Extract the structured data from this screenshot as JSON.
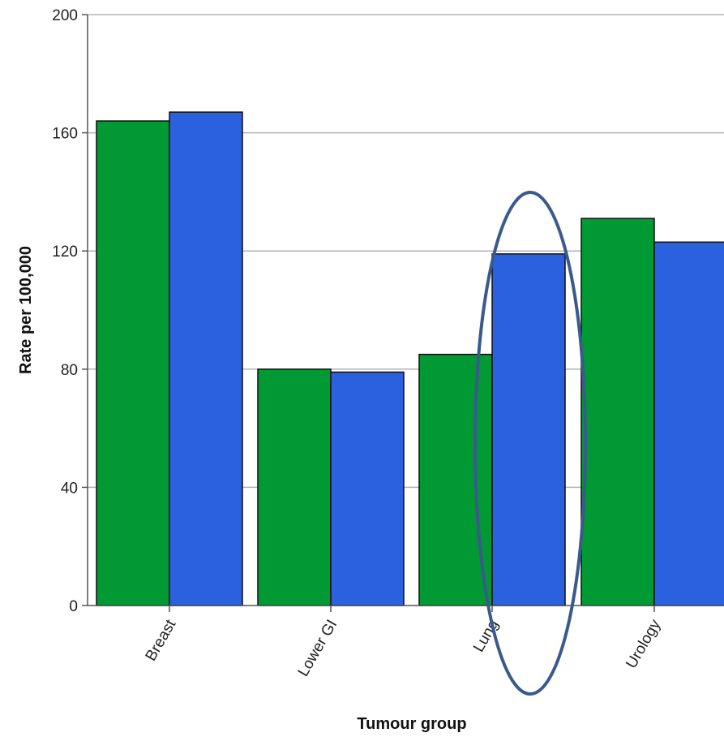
{
  "chart_data": {
    "type": "bar",
    "title": "",
    "xlabel": "Tumour group",
    "ylabel": "Rate per 100,000",
    "ylim": [
      0,
      200
    ],
    "yticks": [
      0,
      40,
      80,
      120,
      160,
      200
    ],
    "grid": true,
    "categories": [
      "Breast",
      "Lower GI",
      "Lung",
      "Urology"
    ],
    "series": [
      {
        "values": [
          164,
          80,
          85,
          131
        ],
        "color": "#009933"
      },
      {
        "values": [
          167,
          79,
          119,
          123
        ],
        "color": "#2B60DE"
      }
    ],
    "annotations": [
      {
        "type": "ellipse",
        "target_category": "Lung",
        "target_series": 1,
        "color": "#3A5A8C"
      }
    ]
  }
}
